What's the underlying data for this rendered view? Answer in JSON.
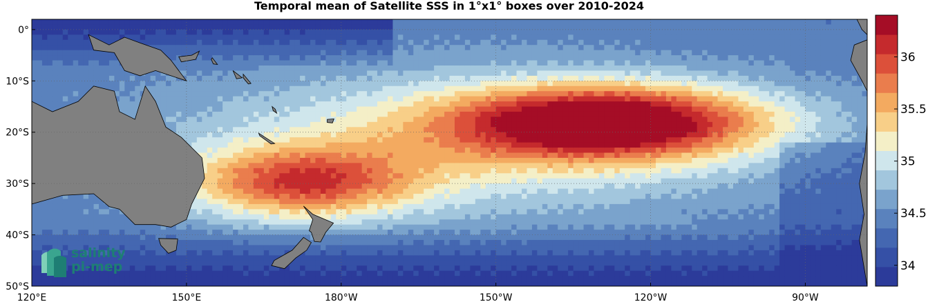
{
  "title": "Temporal mean of Satellite SSS in 1°x1° boxes over 2010-2024",
  "map": {
    "lon_min": 120,
    "lon_max": 282,
    "lat_min": -50,
    "lat_max": 2,
    "x_ticks": [
      {
        "lon": 120,
        "label": "120°E"
      },
      {
        "lon": 150,
        "label": "150°E"
      },
      {
        "lon": 180,
        "label": "180°W"
      },
      {
        "lon": 210,
        "label": "150°W"
      },
      {
        "lon": 240,
        "label": "120°W"
      },
      {
        "lon": 270,
        "label": "90°W"
      }
    ],
    "y_ticks": [
      {
        "lat": 0,
        "label": "0°"
      },
      {
        "lat": -10,
        "label": "10°S"
      },
      {
        "lat": -20,
        "label": "20°S"
      },
      {
        "lat": -30,
        "label": "30°S"
      },
      {
        "lat": -40,
        "label": "40°S"
      },
      {
        "lat": -50,
        "label": "50°S"
      }
    ],
    "grid": true,
    "land_color": "#808080"
  },
  "colorbar": {
    "min": 33.8,
    "max": 36.4,
    "ticks": [
      {
        "value": 34,
        "label": "34"
      },
      {
        "value": 34.5,
        "label": "34.5"
      },
      {
        "value": 35,
        "label": "35"
      },
      {
        "value": 35.5,
        "label": "35.5"
      },
      {
        "value": 36,
        "label": "36"
      }
    ],
    "colors": [
      "#2c3b9a",
      "#3550a6",
      "#4467b1",
      "#5a82bd",
      "#7aa3cc",
      "#a2c6dd",
      "#cfe6ec",
      "#f4efc7",
      "#f8cf88",
      "#f3aa60",
      "#ea7d4d",
      "#dc503a",
      "#c52a2d",
      "#a50d26"
    ]
  },
  "logo": {
    "line1": "salinity",
    "line2": "pi-mep"
  }
}
